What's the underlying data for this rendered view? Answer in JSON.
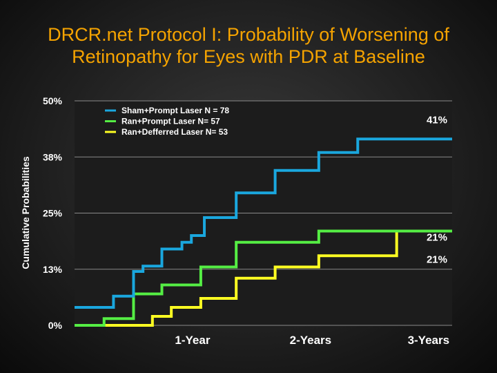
{
  "slide": {
    "title_line1": "DRCR.net Protocol I:  Probability of Worsening of",
    "title_line2": "Retinopathy for Eyes with PDR at Baseline"
  },
  "chart_data": {
    "type": "line",
    "title": "DRCR.net Protocol I:  Probability of Worsening of Retinopathy for Eyes with PDR at Baseline",
    "xlabel": "",
    "ylabel": "Cumulative Probabilities",
    "xlim": [
      0,
      3.2
    ],
    "ylim": [
      0,
      50
    ],
    "grid": true,
    "y_ticks": [
      {
        "value": 0,
        "label": "0%"
      },
      {
        "value": 12.5,
        "label": "13%"
      },
      {
        "value": 25,
        "label": "25%"
      },
      {
        "value": 37.5,
        "label": "38%"
      },
      {
        "value": 50,
        "label": "50%"
      }
    ],
    "x_ticks": [
      {
        "value": 1,
        "label": "1-Year"
      },
      {
        "value": 2,
        "label": "2-Years"
      },
      {
        "value": 3,
        "label": "3-Years"
      }
    ],
    "legend_position": "top-left",
    "series": [
      {
        "name": "Sham+Prompt Laser N = 78",
        "color": "#1aa7de",
        "end_label": "41%",
        "x": [
          0,
          0.33,
          0.5,
          0.58,
          0.74,
          0.91,
          0.99,
          1.1,
          1.37,
          1.7,
          2.07,
          2.4,
          3.2
        ],
        "y": [
          4,
          6.5,
          12,
          13.2,
          17,
          18.5,
          20,
          24,
          29.5,
          34.5,
          38.5,
          41.5,
          41.5
        ]
      },
      {
        "name": "Ran+Prompt Laser N= 57",
        "color": "#55ee44",
        "end_label": "21%",
        "x": [
          0,
          0.25,
          0.5,
          0.74,
          1.07,
          1.37,
          2.07,
          3.2
        ],
        "y": [
          0,
          1.5,
          7,
          9,
          13,
          18.5,
          21,
          21
        ]
      },
      {
        "name": "Ran+Defferred Laser N= 53",
        "color": "#ffff22",
        "end_label": "21%",
        "x": [
          0,
          0.66,
          0.82,
          1.07,
          1.37,
          1.7,
          2.07,
          2.73,
          3.2
        ],
        "y": [
          0,
          2,
          4,
          6,
          10.5,
          13,
          15.5,
          21,
          21
        ]
      }
    ]
  }
}
